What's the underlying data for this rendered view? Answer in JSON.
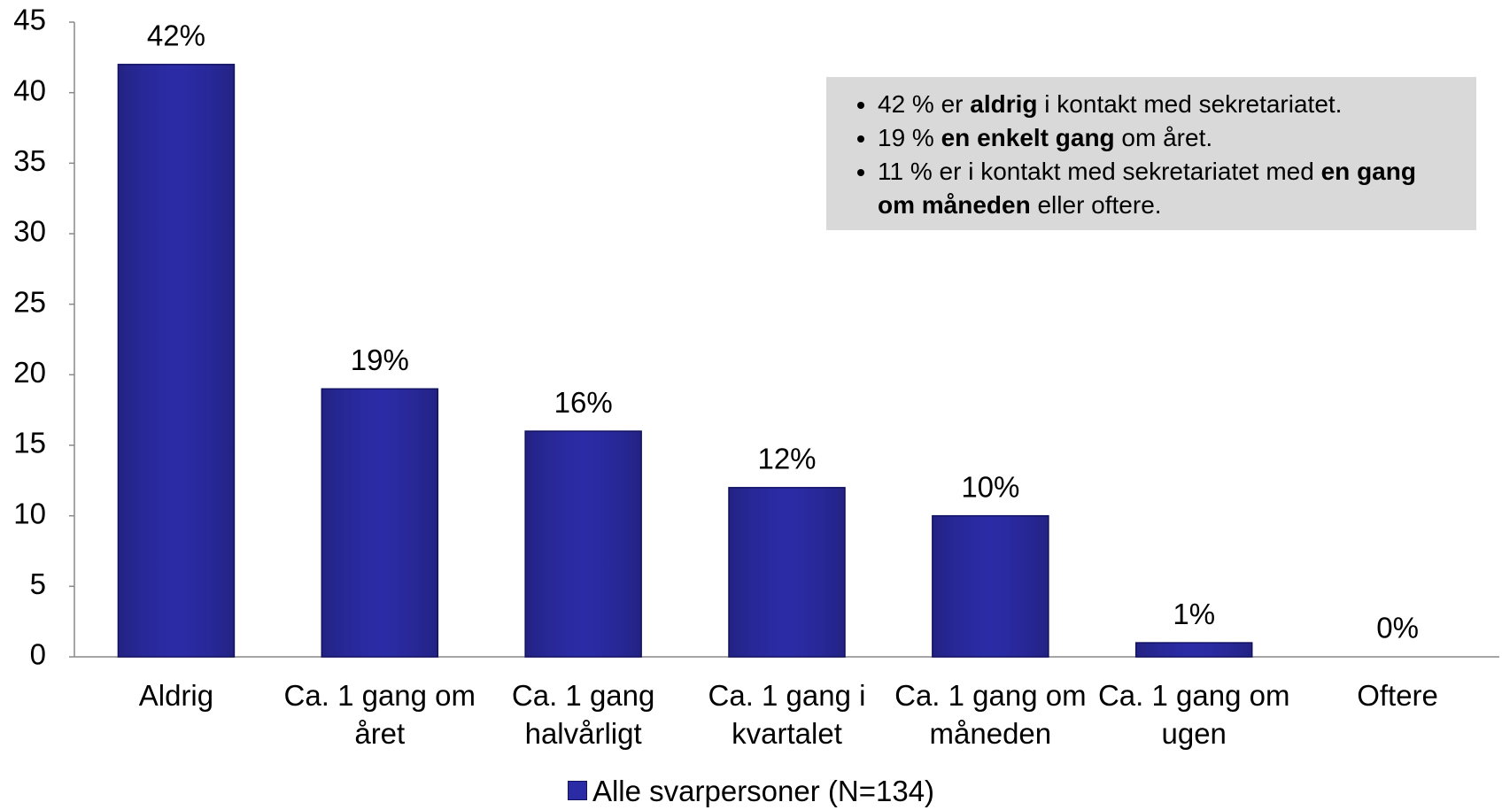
{
  "chart_data": {
    "type": "bar",
    "categories": [
      "Aldrig",
      "Ca. 1 gang om året",
      "Ca. 1 gang halvårligt",
      "Ca. 1 gang i kvartalet",
      "Ca. 1 gang om måneden",
      "Ca. 1 gang om ugen",
      "Oftere"
    ],
    "series": [
      {
        "name": "Alle svarpersoner (N=134)",
        "color": "#2b2ba6",
        "values": [
          42,
          19,
          16,
          12,
          10,
          1,
          0
        ],
        "value_labels": [
          "42%",
          "19%",
          "16%",
          "12%",
          "10%",
          "1%",
          "0%"
        ]
      }
    ],
    "ylim": [
      0,
      45
    ],
    "yticks": [
      0,
      5,
      10,
      15,
      20,
      25,
      30,
      35,
      40,
      45
    ],
    "grid": false,
    "legend": "bottom",
    "annotation": [
      [
        {
          "text": "42 % er "
        },
        {
          "text": "aldrig",
          "bold": true
        },
        {
          "text": " i kontakt med sekretariatet."
        }
      ],
      [
        {
          "text": "19 % "
        },
        {
          "text": "en enkelt gang",
          "bold": true
        },
        {
          "text": " om året."
        }
      ],
      [
        {
          "text": "11 % er i kontakt med sekretariatet med "
        },
        {
          "text": "en gang om måneden",
          "bold": true
        },
        {
          "text": " eller oftere."
        }
      ]
    ]
  }
}
